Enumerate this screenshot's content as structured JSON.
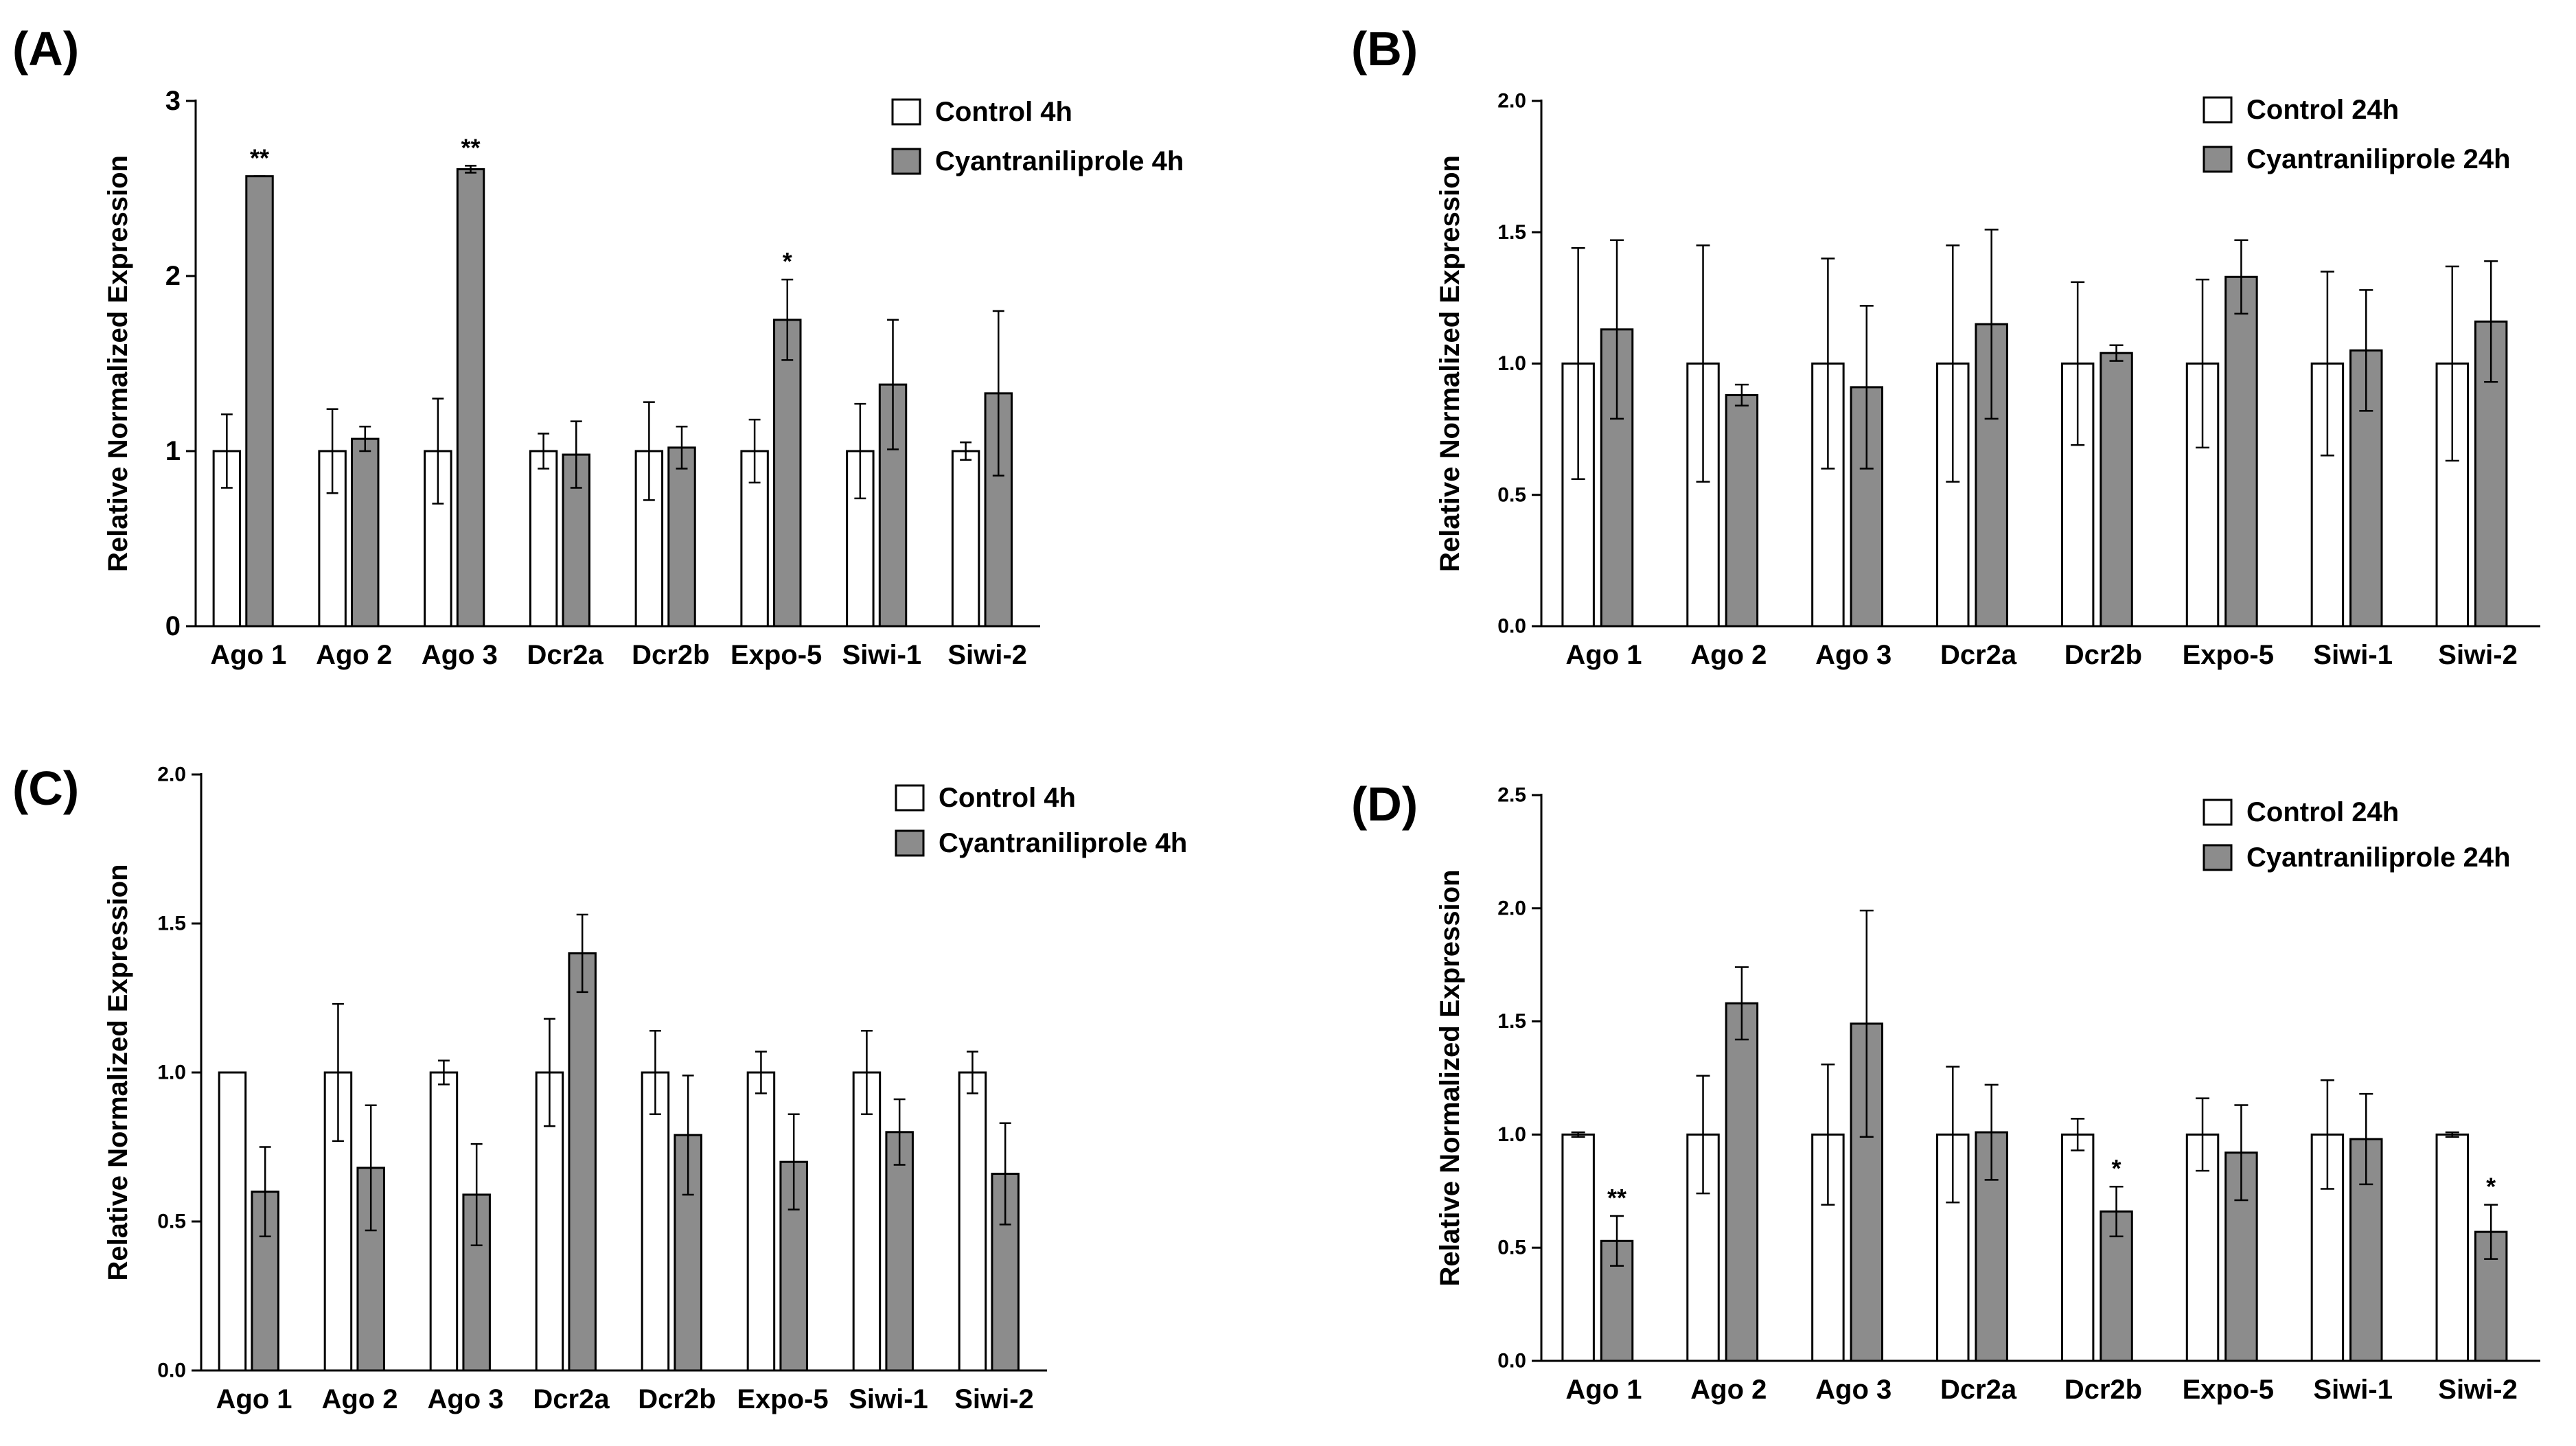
{
  "chart_data": [
    {
      "panel": "(A)",
      "type": "bar",
      "categories": [
        "Ago 1",
        "Ago 2",
        "Ago 3",
        "Dcr2a",
        "Dcr2b",
        "Expo-5",
        "Siwi-1",
        "Siwi-2"
      ],
      "ylabel": "Relative Normalized Expression",
      "ylim": [
        0,
        3
      ],
      "yticks": [
        "0",
        "1",
        "2",
        "3"
      ],
      "legend_position": "top-right",
      "series": [
        {
          "name": "Control 4h",
          "color": "#ffffff",
          "values": [
            1.0,
            1.0,
            1.0,
            1.0,
            1.0,
            1.0,
            1.0,
            1.0
          ],
          "errors": [
            0.21,
            0.24,
            0.3,
            0.1,
            0.28,
            0.18,
            0.27,
            0.05
          ]
        },
        {
          "name": "Cyantraniliprole 4h",
          "color": "#8c8c8c",
          "values": [
            2.57,
            1.07,
            2.61,
            0.98,
            1.02,
            1.75,
            1.38,
            1.33
          ],
          "errors": [
            0.0,
            0.07,
            0.02,
            0.19,
            0.12,
            0.23,
            0.37,
            0.47
          ]
        }
      ],
      "annotations": [
        {
          "category": "Ago 1",
          "text": "**"
        },
        {
          "category": "Ago 3",
          "text": "**"
        },
        {
          "category": "Expo-5",
          "text": "*"
        }
      ]
    },
    {
      "panel": "(B)",
      "type": "bar",
      "categories": [
        "Ago 1",
        "Ago 2",
        "Ago 3",
        "Dcr2a",
        "Dcr2b",
        "Expo-5",
        "Siwi-1",
        "Siwi-2"
      ],
      "ylabel": "Relative Normalized Expression",
      "ylim": [
        0,
        2
      ],
      "yticks": [
        "0.0",
        "0.5",
        "1.0",
        "1.5",
        "2.0"
      ],
      "legend_position": "top-right",
      "series": [
        {
          "name": "Control 24h",
          "color": "#ffffff",
          "values": [
            1.0,
            1.0,
            1.0,
            1.0,
            1.0,
            1.0,
            1.0,
            1.0
          ],
          "errors": [
            0.44,
            0.45,
            0.4,
            0.45,
            0.31,
            0.32,
            0.35,
            0.37
          ]
        },
        {
          "name": "Cyantraniliprole 24h",
          "color": "#8c8c8c",
          "values": [
            1.13,
            0.88,
            0.91,
            1.15,
            1.04,
            1.33,
            1.05,
            1.16
          ],
          "errors": [
            0.34,
            0.04,
            0.31,
            0.36,
            0.03,
            0.14,
            0.23,
            0.23
          ]
        }
      ],
      "annotations": []
    },
    {
      "panel": "(C)",
      "type": "bar",
      "categories": [
        "Ago 1",
        "Ago 2",
        "Ago 3",
        "Dcr2a",
        "Dcr2b",
        "Expo-5",
        "Siwi-1",
        "Siwi-2"
      ],
      "ylabel": "Relative Normalized Expression",
      "ylim": [
        0,
        2
      ],
      "yticks": [
        "0.0",
        "0.5",
        "1.0",
        "1.5",
        "2.0"
      ],
      "legend_position": "top-right",
      "series": [
        {
          "name": "Control 4h",
          "color": "#ffffff",
          "values": [
            1.0,
            1.0,
            1.0,
            1.0,
            1.0,
            1.0,
            1.0,
            1.0
          ],
          "errors": [
            0.0,
            0.23,
            0.04,
            0.18,
            0.14,
            0.07,
            0.14,
            0.07
          ]
        },
        {
          "name": "Cyantraniliprole 4h",
          "color": "#8c8c8c",
          "values": [
            0.6,
            0.68,
            0.59,
            1.4,
            0.79,
            0.7,
            0.8,
            0.66
          ],
          "errors": [
            0.15,
            0.21,
            0.17,
            0.13,
            0.2,
            0.16,
            0.11,
            0.17
          ]
        }
      ],
      "annotations": []
    },
    {
      "panel": "(D)",
      "type": "bar",
      "categories": [
        "Ago 1",
        "Ago 2",
        "Ago 3",
        "Dcr2a",
        "Dcr2b",
        "Expo-5",
        "Siwi-1",
        "Siwi-2"
      ],
      "ylabel": "Relative Normalized Expression",
      "ylim": [
        0,
        2.5
      ],
      "yticks": [
        "0.0",
        "0.5",
        "1.0",
        "1.5",
        "2.0",
        "2.5"
      ],
      "legend_position": "top-right",
      "series": [
        {
          "name": "Control 24h",
          "color": "#ffffff",
          "values": [
            1.0,
            1.0,
            1.0,
            1.0,
            1.0,
            1.0,
            1.0,
            1.0
          ],
          "errors": [
            0.01,
            0.26,
            0.31,
            0.3,
            0.07,
            0.16,
            0.24,
            0.01
          ]
        },
        {
          "name": "Cyantraniliprole 24h",
          "color": "#8c8c8c",
          "values": [
            0.53,
            1.58,
            1.49,
            1.01,
            0.66,
            0.92,
            0.98,
            0.57
          ],
          "errors": [
            0.11,
            0.16,
            0.5,
            0.21,
            0.11,
            0.21,
            0.2,
            0.12
          ]
        }
      ],
      "annotations": [
        {
          "category": "Ago 1",
          "text": "**"
        },
        {
          "category": "Dcr2b",
          "text": "*"
        },
        {
          "category": "Siwi-2",
          "text": "*"
        }
      ]
    }
  ]
}
